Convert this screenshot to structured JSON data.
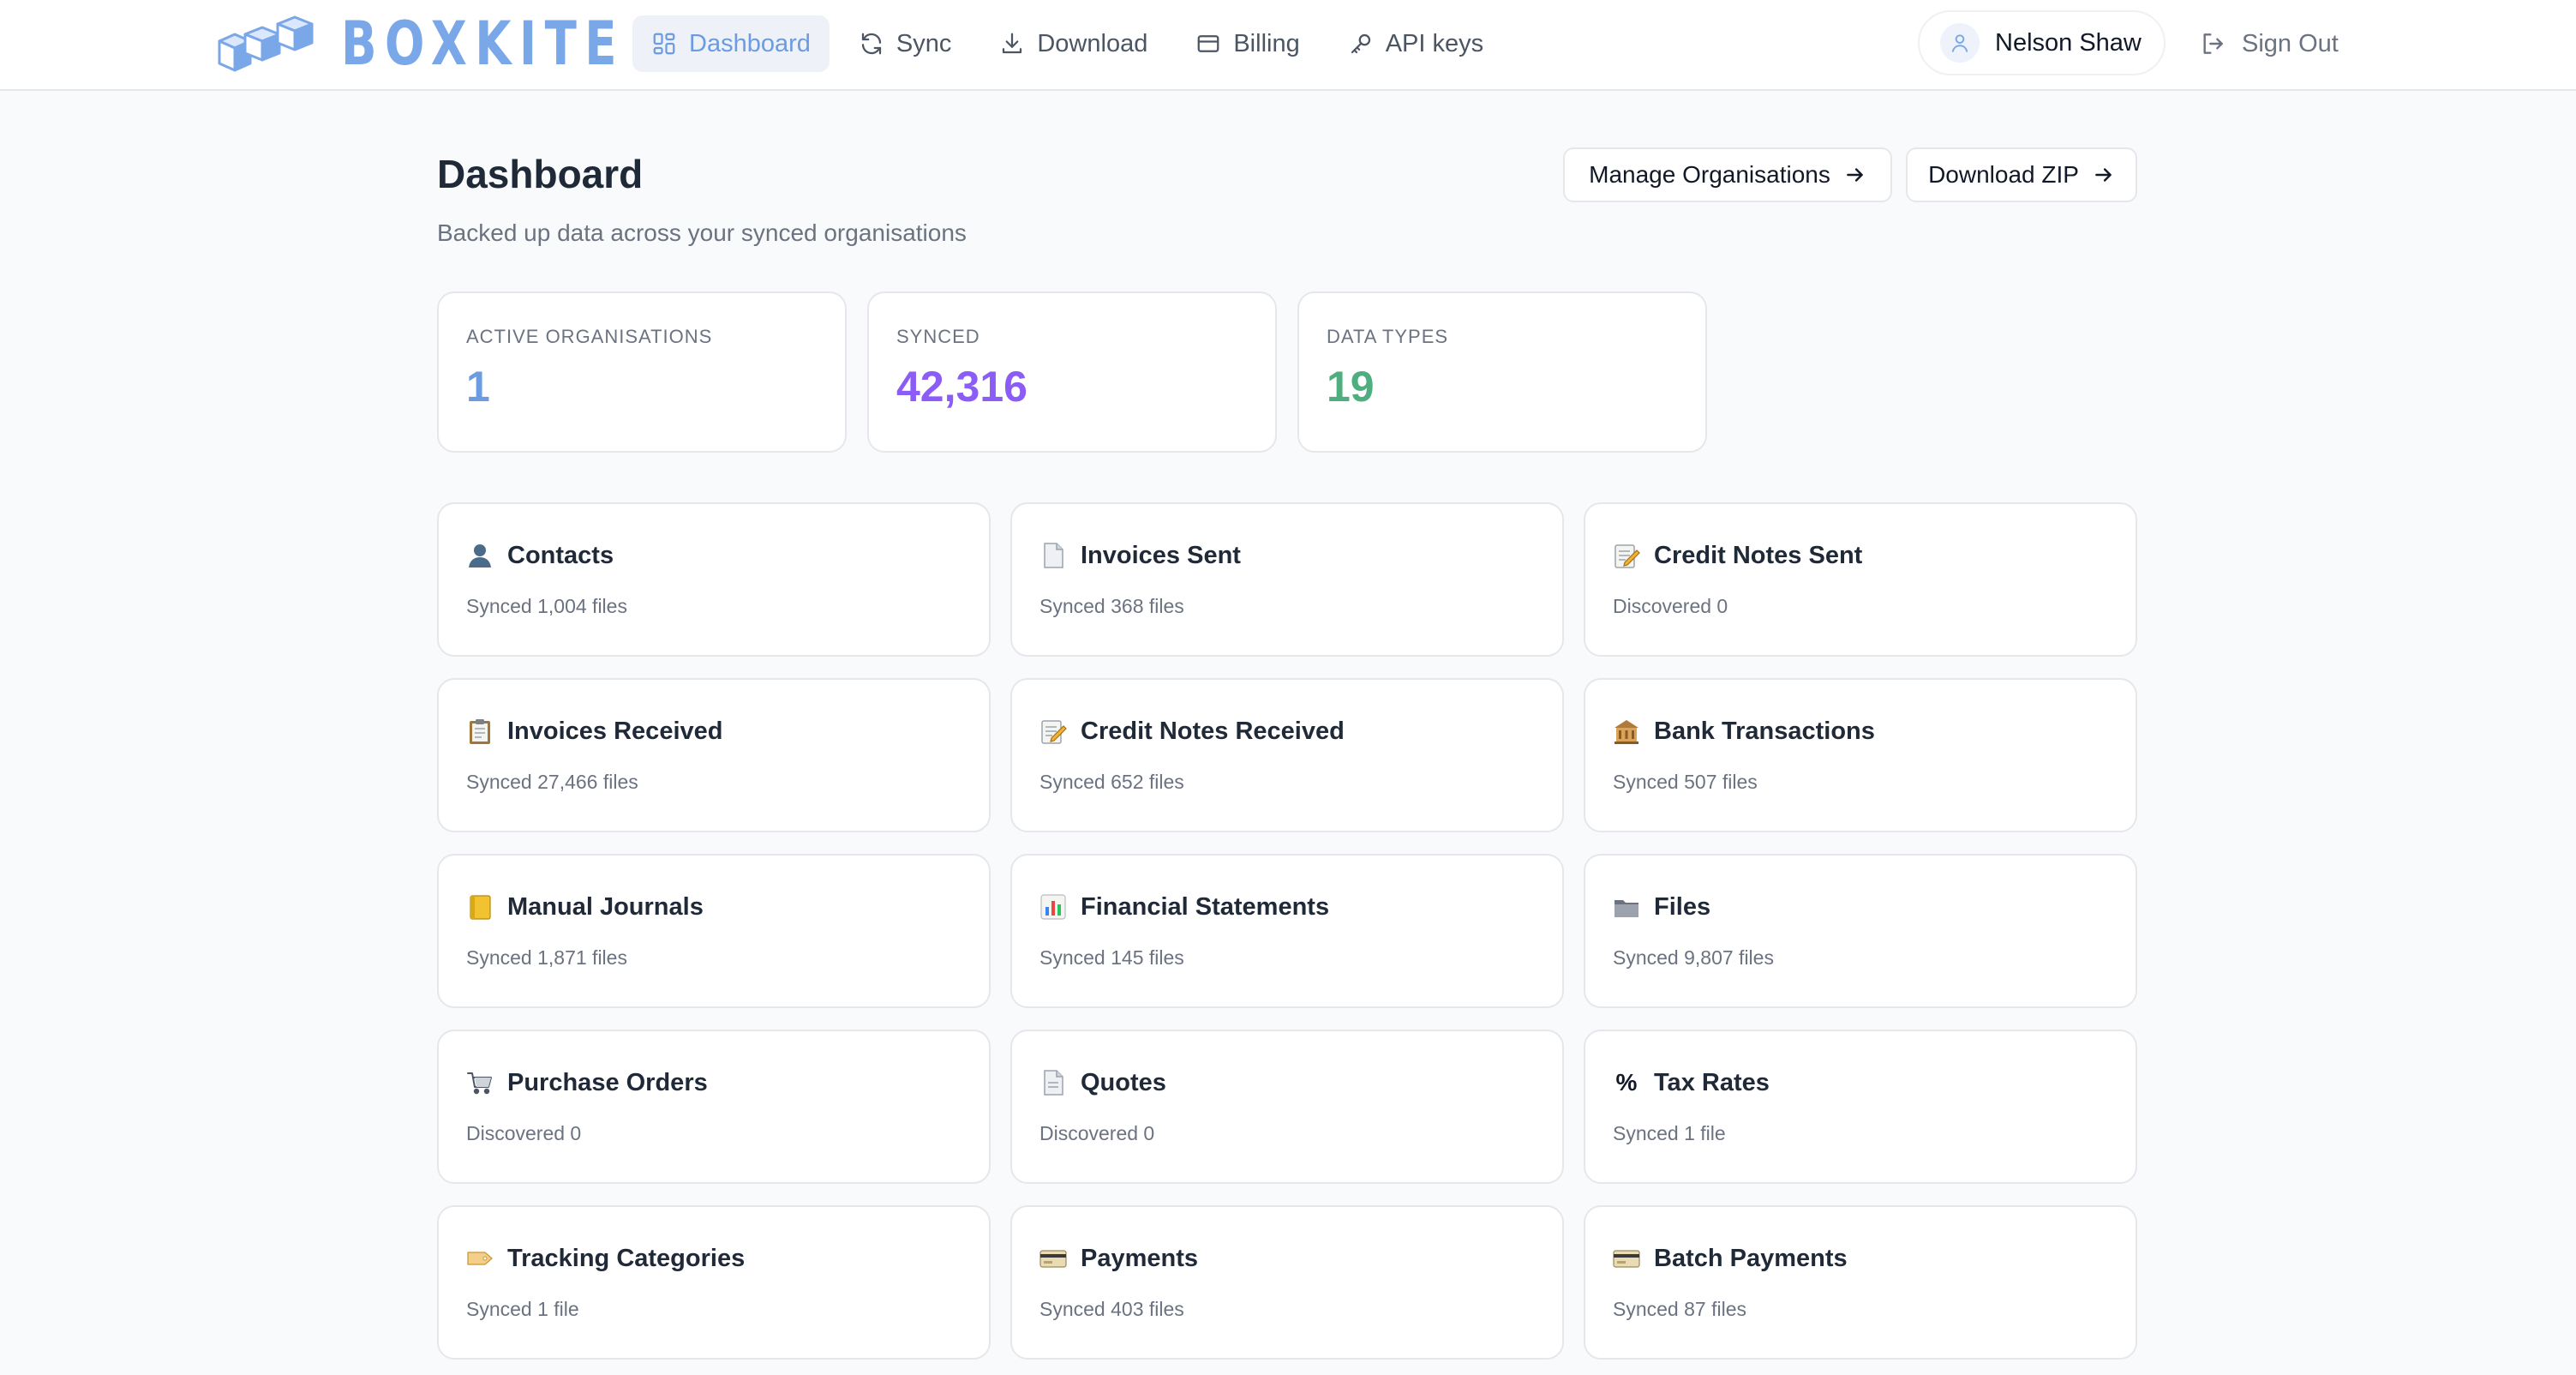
{
  "brand": {
    "name": "BOXKITE",
    "color": "#7aa7e8"
  },
  "nav": {
    "items": [
      {
        "label": "Dashboard",
        "icon": "dashboard-grid-icon",
        "active": true
      },
      {
        "label": "Sync",
        "icon": "sync-icon"
      },
      {
        "label": "Download",
        "icon": "download-icon"
      },
      {
        "label": "Billing",
        "icon": "credit-card-icon"
      },
      {
        "label": "API keys",
        "icon": "key-icon"
      }
    ],
    "user_name": "Nelson Shaw",
    "sign_out_label": "Sign Out"
  },
  "page": {
    "title": "Dashboard",
    "subtitle": "Backed up data across your synced organisations",
    "manage_button": "Manage Organisations",
    "download_button": "Download ZIP"
  },
  "stats": [
    {
      "label": "ACTIVE ORGANISATIONS",
      "value": "1",
      "color": "#6b9be0"
    },
    {
      "label": "SYNCED",
      "value": "42,316",
      "color": "#8b5cf6"
    },
    {
      "label": "DATA TYPES",
      "value": "19",
      "color": "#4fae7f"
    }
  ],
  "data_types": [
    {
      "title": "Contacts",
      "status": "Synced 1,004 files",
      "icon": "contact-person-icon"
    },
    {
      "title": "Invoices Sent",
      "status": "Synced 368 files",
      "icon": "document-icon"
    },
    {
      "title": "Credit Notes Sent",
      "status": "Discovered 0",
      "icon": "memo-pencil-icon"
    },
    {
      "title": "Invoices Received",
      "status": "Synced 27,466 files",
      "icon": "clipboard-icon"
    },
    {
      "title": "Credit Notes Received",
      "status": "Synced 652 files",
      "icon": "memo-pencil-icon"
    },
    {
      "title": "Bank Transactions",
      "status": "Synced 507 files",
      "icon": "bank-icon"
    },
    {
      "title": "Manual Journals",
      "status": "Synced 1,871 files",
      "icon": "ledger-icon"
    },
    {
      "title": "Financial Statements",
      "status": "Synced 145 files",
      "icon": "bar-chart-icon"
    },
    {
      "title": "Files",
      "status": "Synced 9,807 files",
      "icon": "folder-icon"
    },
    {
      "title": "Purchase Orders",
      "status": "Discovered 0",
      "icon": "shopping-cart-icon"
    },
    {
      "title": "Quotes",
      "status": "Discovered 0",
      "icon": "document-icon"
    },
    {
      "title": "Tax Rates",
      "status": "Synced 1 file",
      "icon": "percent-icon",
      "glyph": "%"
    },
    {
      "title": "Tracking Categories",
      "status": "Synced 1 file",
      "icon": "tag-icon"
    },
    {
      "title": "Payments",
      "status": "Synced 403 files",
      "icon": "credit-card-icon"
    },
    {
      "title": "Batch Payments",
      "status": "Synced 87 files",
      "icon": "credit-card-icon"
    }
  ]
}
